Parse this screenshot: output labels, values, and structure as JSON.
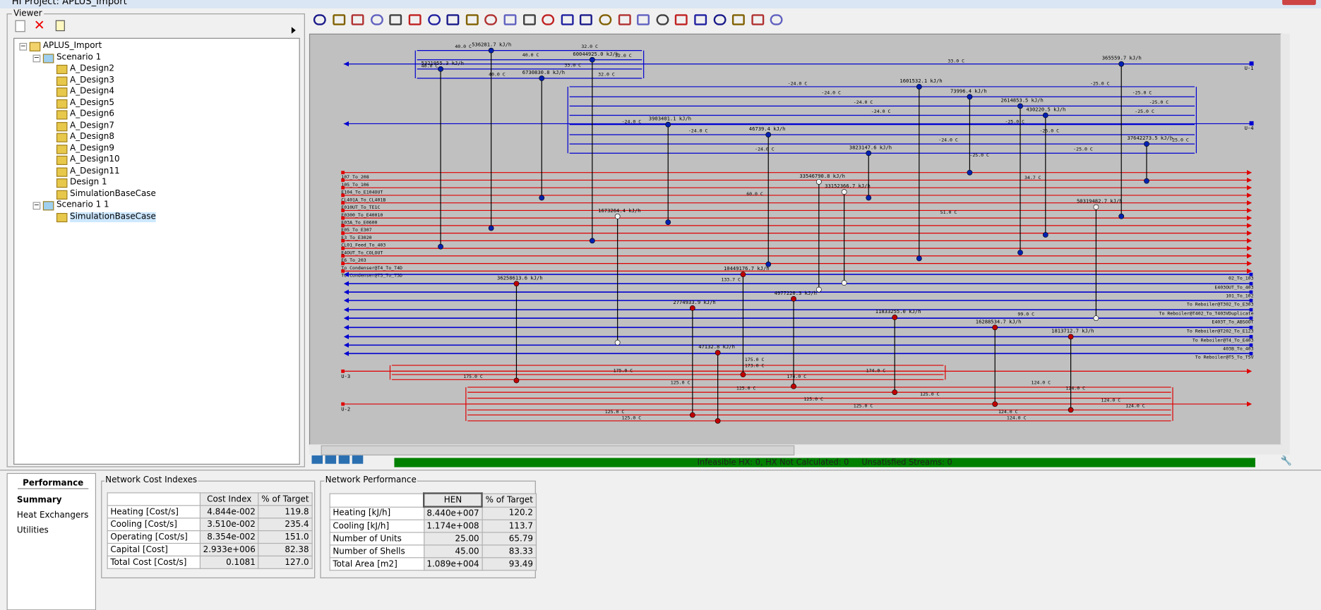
{
  "window": {
    "title": "HI Project: APLUS_Import"
  },
  "viewer": {
    "label": "Viewer",
    "tree": {
      "label": "APLUS_Import",
      "children": [
        {
          "label": "Scenario 1",
          "children": [
            {
              "label": "A_Design2"
            },
            {
              "label": "A_Design3"
            },
            {
              "label": "A_Design4"
            },
            {
              "label": "A_Design5"
            },
            {
              "label": "A_Design6"
            },
            {
              "label": "A_Design7"
            },
            {
              "label": "A_Design8"
            },
            {
              "label": "A_Design9"
            },
            {
              "label": "A_Design10"
            },
            {
              "label": "A_Design11"
            },
            {
              "label": "Design 1"
            },
            {
              "label": "SimulationBaseCase"
            }
          ]
        },
        {
          "label": "Scenario 1 1",
          "children": [
            {
              "label": "SimulationBaseCase"
            }
          ]
        }
      ]
    }
  },
  "diagram": {
    "utilities": [
      "U-1",
      "U-4",
      "U-3",
      "U-2"
    ],
    "hot_streams": [
      "107_To_208",
      "105_To_106",
      "E104_To_E104OUT",
      "CL401A_To_CL401B",
      "E010UT_To_TE1C",
      "E0300_To_E40010",
      "E03A_To_E0600",
      "E05_To_E307",
      "E3_To_E3020",
      "CL01_Feed_To_403",
      "E4OUT_To_COLOUT",
      "E6_To_203",
      "To Condenser@T4_To_T4D",
      "To Condenser@T5_To_T5D"
    ],
    "cold_streams": [
      "02_To_103",
      "E403OUT_To_403",
      "101_To_102",
      "To Reboiler@T302_To_E303",
      "To Reboiler@T402_To_T403VDuplicate",
      "E403T_To_ABSOOT",
      "To Reboiler@T202_To_E123",
      "To Reboiler@T4_To_E403",
      "403B_To_403",
      "To Reboiler@T5_To_T5V"
    ],
    "exchangers": [
      "5321955.3 kJ/h",
      "536281.7 kJ/h",
      "6730830.8 kJ/h",
      "60044925.0 kJ/h",
      "3903401.1 kJ/h",
      "46739.4 kJ/h",
      "3823147.6 kJ/h",
      "1601532.1 kJ/h",
      "73996.4 kJ/h",
      "2614853.5 kJ/h",
      "430220.5 kJ/h",
      "365559.7 kJ/h",
      "37642273.5 kJ/h",
      "1673264.4 kJ/h",
      "33546790.8 kJ/h",
      "33152366.7 kJ/h",
      "50319482.7 kJ/h",
      "36258613.6 kJ/h",
      "2774933.9 kJ/h",
      "47132.8 kJ/h",
      "10449176.7 kJ/h",
      "4977220.3 kJ/h",
      "11833255.0 kJ/h",
      "16288534.7 kJ/h",
      "1813712.7 kJ/h"
    ],
    "temperatures": [
      "40.0 C",
      "32.0 C",
      "40.0 C",
      "32.0 C",
      "40.0 C",
      "33.0 C",
      "40.0 C",
      "32.0 C",
      "33.0 C",
      "-24.0 C",
      "-25.0 C",
      "-24.0 C",
      "-25.0 C",
      "-24.0 C",
      "-25.0 C",
      "-24.0 C",
      "-25.0 C",
      "-24.0 C",
      "-25.0 C",
      "-24.0 C",
      "-25.0 C",
      "-24.0 C",
      "-25.0 C",
      "-24.0 C",
      "-25.0 C",
      "-25.0 C",
      "60.0 C",
      "34.7 C",
      "51.0 C",
      "133.7 C",
      "99.0 C",
      "175.0 C",
      "174.0 C",
      "175.0 C",
      "174.0 C",
      "175.0 C",
      "173.0 C",
      "125.0 C",
      "124.0 C",
      "125.0 C",
      "124.0 C",
      "125.0 C",
      "125.0 C",
      "124.0 C",
      "124.0 C",
      "125.0 C",
      "125.0 C",
      "124.0 C",
      "125.0 C",
      "124.0 C"
    ]
  },
  "status": "Infeasible HX: 0, HX Not Calculated: 0     Unsatisfied Streams: 0",
  "performance": {
    "title": "Performance",
    "nav": [
      "Summary",
      "Heat Exchangers",
      "Utilities"
    ]
  },
  "cost_table": {
    "title": "Network Cost Indexes",
    "header": [
      "Cost Index",
      "% of Target"
    ],
    "rows": [
      [
        "Heating [Cost/s]",
        "4.844e-002",
        "119.8"
      ],
      [
        "Cooling [Cost/s]",
        "3.510e-002",
        "235.4"
      ],
      [
        "Operating [Cost/s]",
        "8.354e-002",
        "151.0"
      ],
      [
        "Capital [Cost]",
        "2.933e+006",
        "82.38"
      ],
      [
        "Total Cost [Cost/s]",
        "0.1081",
        "127.0"
      ]
    ]
  },
  "perf_table": {
    "title": "Network Performance",
    "header": [
      "HEN",
      "% of Target"
    ],
    "rows": [
      [
        "Heating [kJ/h]",
        "8.440e+007",
        "120.2"
      ],
      [
        "Cooling [kJ/h]",
        "1.174e+008",
        "113.7"
      ],
      [
        "Number of Units",
        "25.00",
        "65.79"
      ],
      [
        "Number of Shells",
        "45.00",
        "83.33"
      ],
      [
        "Total Area [m2]",
        "1.089e+004",
        "93.49"
      ]
    ]
  }
}
